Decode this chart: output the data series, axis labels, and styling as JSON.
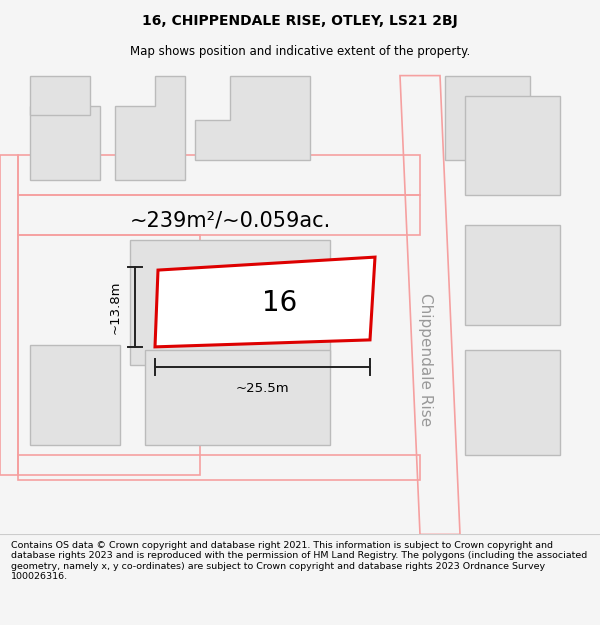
{
  "title": "16, CHIPPENDALE RISE, OTLEY, LS21 2BJ",
  "subtitle": "Map shows position and indicative extent of the property.",
  "footer": "Contains OS data © Crown copyright and database right 2021. This information is subject to Crown copyright and database rights 2023 and is reproduced with the permission of HM Land Registry. The polygons (including the associated geometry, namely x, y co-ordinates) are subject to Crown copyright and database rights 2023 Ordnance Survey 100026316.",
  "area_text": "~239m²/~0.059ac.",
  "number_label": "16",
  "width_label": "~25.5m",
  "height_label": "~13.8m",
  "street_label": "Chippendale Rise",
  "bg_color": "#f5f5f5",
  "map_bg": "#ffffff",
  "plot_color_fill": "#ffffff",
  "plot_color_edge": "#dd0000",
  "building_fill": "#e2e2e2",
  "building_edge": "#bbbbbb",
  "road_outline_color": "#f5a0a0",
  "title_fontsize": 10,
  "subtitle_fontsize": 8.5,
  "footer_fontsize": 6.8,
  "area_fontsize": 15,
  "number_fontsize": 20,
  "label_fontsize": 9.5,
  "street_fontsize": 11,
  "dim_line_color": "#222222"
}
